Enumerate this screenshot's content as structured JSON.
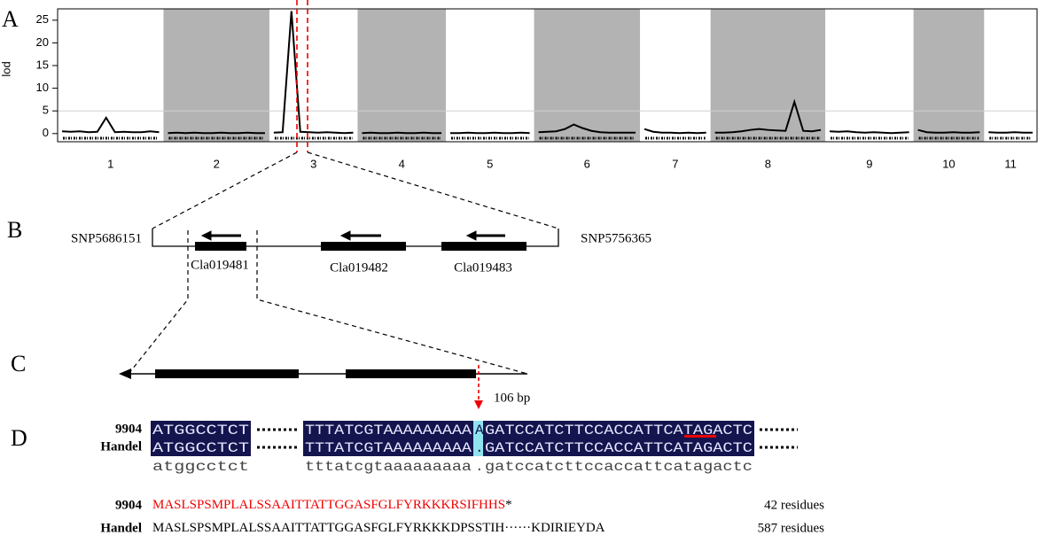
{
  "panel_labels": [
    "A",
    "B",
    "C",
    "D"
  ],
  "chart_data": {
    "type": "line",
    "y_label": "lod",
    "ylim": [
      -1.8,
      27.5
    ],
    "yticks": [
      0,
      5,
      10,
      15,
      20,
      25
    ],
    "threshold": 5,
    "color": "#000000",
    "band_color": "#b3b3b3",
    "chromosomes": [
      {
        "label": "1",
        "values": [
          0.5,
          0.4,
          0.5,
          0.3,
          0.4,
          3.5,
          0.3,
          0.4,
          0.3,
          0.3,
          0.5,
          0.3
        ]
      },
      {
        "label": "2",
        "values": [
          0.1,
          0.2,
          0.1,
          0.2,
          0.1,
          0.1,
          0.2,
          0.1,
          0.1,
          0.2,
          0.1,
          0.1
        ]
      },
      {
        "label": "3",
        "values": [
          0.2,
          0.3,
          27,
          0.4,
          0.3,
          0.2,
          0.3,
          0.2,
          0.1,
          0.2
        ]
      },
      {
        "label": "4",
        "values": [
          0.1,
          0.2,
          0.1,
          0.1,
          0.2,
          0.1,
          0.1,
          0.2,
          0.1,
          0.1
        ]
      },
      {
        "label": "5",
        "values": [
          0.1,
          0.1,
          0.2,
          0.1,
          0.1,
          0.2,
          0.1,
          0.1,
          0.2,
          0.1
        ]
      },
      {
        "label": "6",
        "values": [
          0.3,
          0.4,
          0.5,
          1.0,
          2.0,
          1.2,
          0.6,
          0.3,
          0.2,
          0.2,
          0.2,
          0.2
        ]
      },
      {
        "label": "7",
        "values": [
          1.0,
          0.4,
          0.2,
          0.2,
          0.1,
          0.2,
          0.1,
          0.2
        ]
      },
      {
        "label": "8",
        "values": [
          0.2,
          0.2,
          0.3,
          0.5,
          0.8,
          1.0,
          0.8,
          0.7,
          0.6,
          7,
          0.6,
          0.5,
          0.8
        ]
      },
      {
        "label": "9",
        "values": [
          0.5,
          0.4,
          0.5,
          0.3,
          0.2,
          0.3,
          0.2,
          0.1,
          0.2,
          0.3
        ]
      },
      {
        "label": "10",
        "values": [
          0.8,
          0.3,
          0.2,
          0.2,
          0.3,
          0.2,
          0.2,
          0.3
        ]
      },
      {
        "label": "11",
        "values": [
          0.3,
          0.2,
          0.2,
          0.3,
          0.2,
          0.2
        ]
      }
    ]
  },
  "gene_region": {
    "left_marker": "SNP5686151",
    "right_marker": "SNP5756365",
    "genes": [
      "Cla019481",
      "Cla019482",
      "Cla019483"
    ]
  },
  "gene_model": {
    "mutation": "106 bp"
  },
  "alignment": {
    "rows": [
      {
        "name": "9904",
        "segments": [
          "ATGGCCTCT",
          "TTTATCGTAAAAAAAAA",
          "A",
          "GATCCATCTTCCACCATTCATAGACTC"
        ]
      },
      {
        "name": "Handel",
        "segments": [
          "ATGGCCTCT",
          "TTTATCGTAAAAAAAAA",
          ".",
          "GATCCATCTTCCACCATTCATAGACTC"
        ]
      }
    ],
    "consensus": [
      "atggcctct",
      "tttatcgtaaaaaaaaa",
      ".",
      "gatccatcttccaccattcatagactc"
    ]
  },
  "proteins": [
    {
      "name": "9904",
      "sequence": "MASLSPSMPLALSSAAITTATTGGASFGLFYRKKKRSIFHHS",
      "stop": "*",
      "length": "42 residues"
    },
    {
      "name": "Handel",
      "sequence": "MASLSPSMPLALSSAAITTATTGGASFGLFYRKKKDPSSTIH······KDIRIEYDA",
      "length": "587 residues"
    }
  ]
}
